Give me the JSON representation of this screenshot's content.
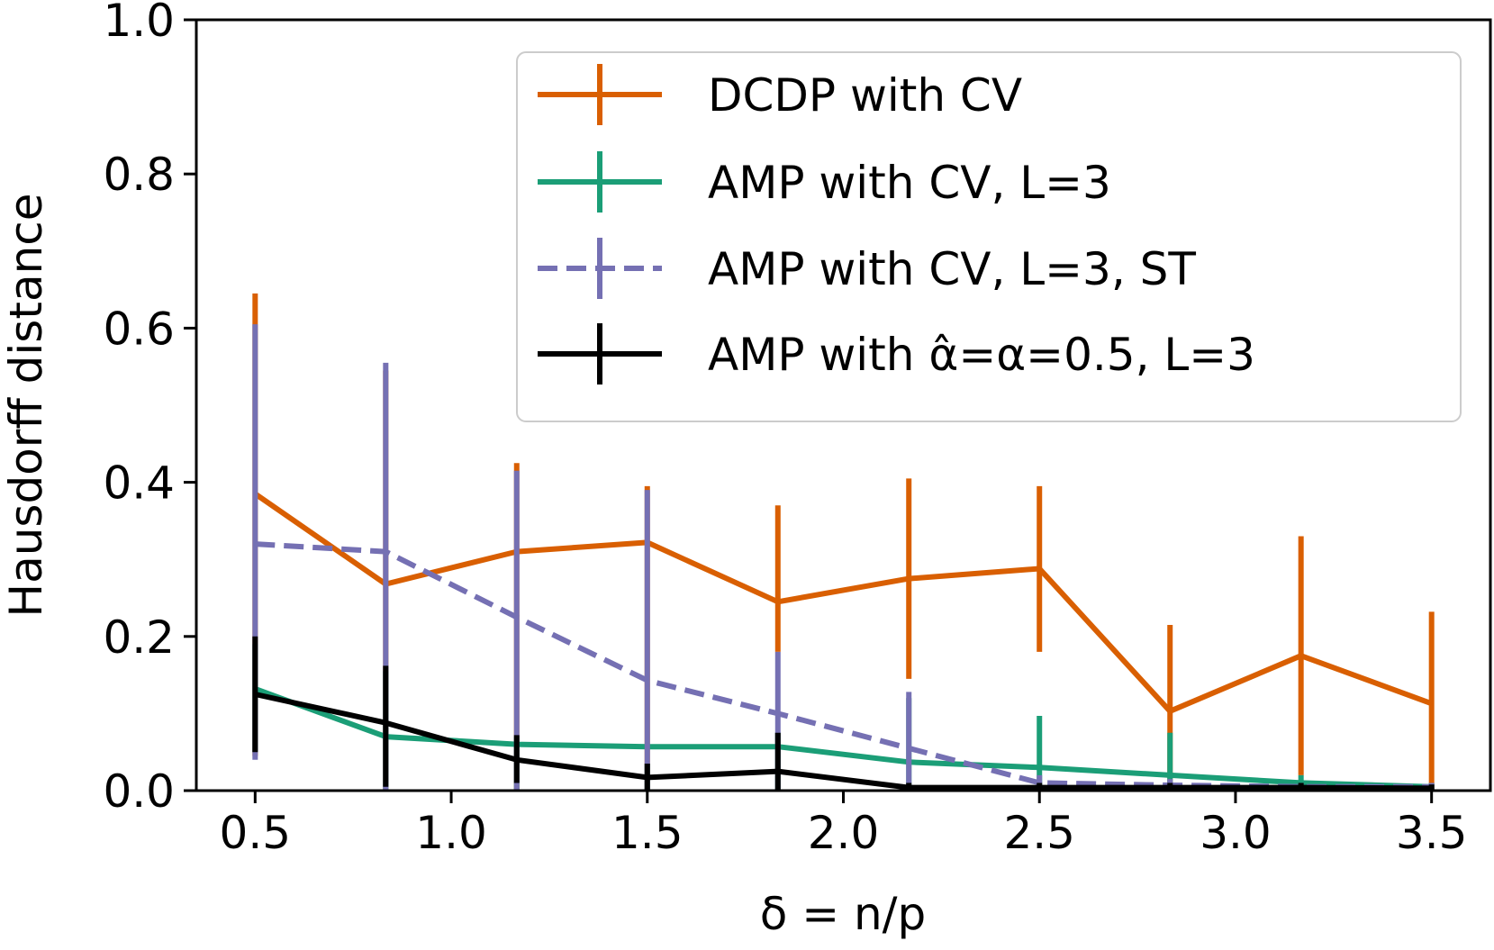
{
  "chart_data": {
    "type": "line",
    "title": "",
    "xlabel": "δ = n/p",
    "ylabel": "Hausdorff distance",
    "xlim": [
      0.35,
      3.65
    ],
    "ylim": [
      0.0,
      1.0
    ],
    "xticks": [
      0.5,
      1.0,
      1.5,
      2.0,
      2.5,
      3.0,
      3.5
    ],
    "xtick_labels": [
      "0.5",
      "1.0",
      "1.5",
      "2.0",
      "2.5",
      "3.0",
      "3.5"
    ],
    "yticks": [
      0.0,
      0.2,
      0.4,
      0.6,
      0.8,
      1.0
    ],
    "ytick_labels": [
      "0.0",
      "0.2",
      "0.4",
      "0.6",
      "0.8",
      "1.0"
    ],
    "grid": false,
    "legend_position": "top-right",
    "x": [
      0.5,
      0.833,
      1.167,
      1.5,
      1.833,
      2.167,
      2.5,
      2.833,
      3.167,
      3.5
    ],
    "series": [
      {
        "name": "DCDP with CV",
        "color": "#d95f02",
        "dash": false,
        "values": [
          0.385,
          0.268,
          0.31,
          0.322,
          0.245,
          0.275,
          0.288,
          0.103,
          0.175,
          0.113
        ],
        "err_low": [
          0.045,
          0.0,
          0.0,
          0.0,
          0.18,
          0.145,
          0.18,
          0.0,
          0.02,
          0.0
        ],
        "err_high": [
          0.645,
          0.545,
          0.425,
          0.395,
          0.37,
          0.405,
          0.395,
          0.215,
          0.33,
          0.232
        ]
      },
      {
        "name": "AMP with CV, L=3",
        "color": "#1b9e77",
        "dash": false,
        "values": [
          0.132,
          0.07,
          0.06,
          0.057,
          0.057,
          0.037,
          0.03,
          0.02,
          0.01,
          0.005
        ],
        "err_low": [
          0.05,
          0.0,
          0.0,
          0.0,
          0.0,
          0.0,
          0.0,
          0.0,
          0.0,
          0.0
        ],
        "err_high": [
          0.19,
          0.155,
          0.07,
          0.035,
          0.075,
          0.12,
          0.097,
          0.075,
          0.02,
          0.01
        ]
      },
      {
        "name": "AMP with CV, L=3, ST",
        "color": "#7570b3",
        "dash": true,
        "values": [
          0.32,
          0.31,
          0.225,
          0.143,
          0.1,
          0.055,
          0.01,
          0.007,
          0.005,
          0.005
        ],
        "err_low": [
          0.04,
          0.0,
          0.0,
          0.0,
          0.0,
          0.0,
          0.0,
          0.0,
          0.0,
          0.0
        ],
        "err_high": [
          0.605,
          0.555,
          0.415,
          0.39,
          0.18,
          0.128,
          0.02,
          0.015,
          0.01,
          0.01
        ]
      },
      {
        "name": "AMP with α̂=α=0.5, L=3",
        "color": "#000000",
        "dash": false,
        "values": [
          0.125,
          0.088,
          0.04,
          0.017,
          0.025,
          0.004,
          0.004,
          0.004,
          0.004,
          0.003
        ],
        "err_low": [
          0.05,
          0.005,
          0.01,
          0.0,
          0.0,
          0.0,
          0.0,
          0.0,
          0.0,
          0.0
        ],
        "err_high": [
          0.2,
          0.162,
          0.072,
          0.035,
          0.075,
          0.01,
          0.01,
          0.01,
          0.01,
          0.008
        ]
      }
    ]
  }
}
